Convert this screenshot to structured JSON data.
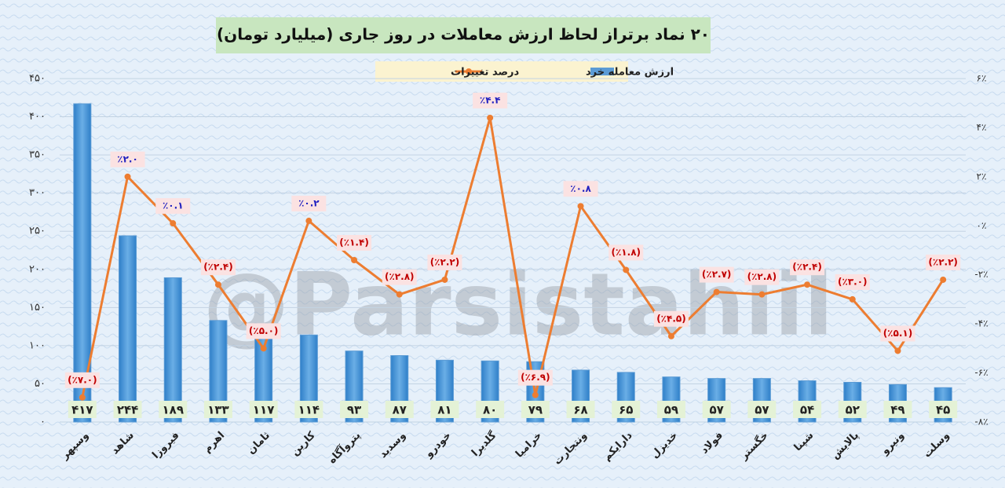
{
  "chart_data": {
    "type": "bar-line",
    "title": "۲۰ نماد برتراز لحاظ ارزش معاملات در روز جاری (میلیارد تومان)",
    "watermark": "@Parsistahlil",
    "categories": [
      "وسپهر",
      "شاهد",
      "فیروزا",
      "اهرم",
      "ثامان",
      "کارین",
      "پتروآگاه",
      "وسدید",
      "خودرو",
      "گلدیرا",
      "خراميا",
      "ونتجارت",
      "دارایکم",
      "خدیزل",
      "فولاد",
      "خگستر",
      "شپنا",
      "پالایش",
      "ونیرو",
      "وسلت"
    ],
    "series": [
      {
        "name": "ارزش معامله خرد",
        "type": "bar",
        "color": "#5b9bd5",
        "values": [
          417,
          244,
          189,
          133,
          117,
          114,
          93,
          87,
          81,
          80,
          79,
          68,
          65,
          59,
          57,
          57,
          54,
          52,
          49,
          45
        ],
        "value_labels": [
          "۴۱۷",
          "۲۴۴",
          "۱۸۹",
          "۱۳۳",
          "۱۱۷",
          "۱۱۴",
          "۹۳",
          "۸۷",
          "۸۱",
          "۸۰",
          "۷۹",
          "۶۸",
          "۶۵",
          "۵۹",
          "۵۷",
          "۵۷",
          "۵۴",
          "۵۲",
          "۴۹",
          "۴۵"
        ]
      },
      {
        "name": "درصد تغییرات",
        "type": "line",
        "axis": "y2",
        "color": "#ed7d31",
        "values": [
          -7.0,
          2.0,
          0.1,
          -2.4,
          -5.0,
          0.2,
          -1.4,
          -2.8,
          -2.2,
          4.4,
          -6.9,
          0.8,
          -1.8,
          -4.5,
          -2.7,
          -2.8,
          -2.4,
          -3.0,
          -5.1,
          -2.2
        ],
        "value_labels": [
          "(٪۷.۰)",
          "٪۲.۰",
          "٪۰.۱",
          "(٪۲.۴)",
          "(٪۵.۰)",
          "٪۰.۲",
          "(٪۱.۴)",
          "(٪۲.۸)",
          "(٪۲.۲)",
          "٪۴.۴",
          "(٪۶.۹)",
          "٪۰.۸",
          "(٪۱.۸)",
          "(٪۴.۵)",
          "(٪۲.۷)",
          "(٪۲.۸)",
          "(٪۲.۴)",
          "(٪۳.۰)",
          "(٪۵.۱)",
          "(٪۲.۲)"
        ]
      }
    ],
    "ylim": [
      0,
      450
    ],
    "yticks": [
      {
        "value": 0,
        "label": "۰"
      },
      {
        "value": 50,
        "label": "۵۰"
      },
      {
        "value": 100,
        "label": "۱۰۰"
      },
      {
        "value": 150,
        "label": "۱۵۰"
      },
      {
        "value": 200,
        "label": "۲۰۰"
      },
      {
        "value": 250,
        "label": "۲۵۰"
      },
      {
        "value": 300,
        "label": "۳۰۰"
      },
      {
        "value": 350,
        "label": "۳۵۰"
      },
      {
        "value": 400,
        "label": "۴۰۰"
      },
      {
        "value": 450,
        "label": "۴۵۰"
      }
    ],
    "y2lim": [
      -8,
      6
    ],
    "y2ticks": [
      {
        "value": -8,
        "label": "-۸٪"
      },
      {
        "value": -6,
        "label": "-۶٪"
      },
      {
        "value": -4,
        "label": "-۴٪"
      },
      {
        "value": -2,
        "label": "-۲٪"
      },
      {
        "value": 0,
        "label": "۰٪"
      },
      {
        "value": 2,
        "label": "۲٪"
      },
      {
        "value": 4,
        "label": "۴٪"
      },
      {
        "value": 6,
        "label": "۶٪"
      }
    ],
    "grid": true,
    "legend": "top"
  }
}
